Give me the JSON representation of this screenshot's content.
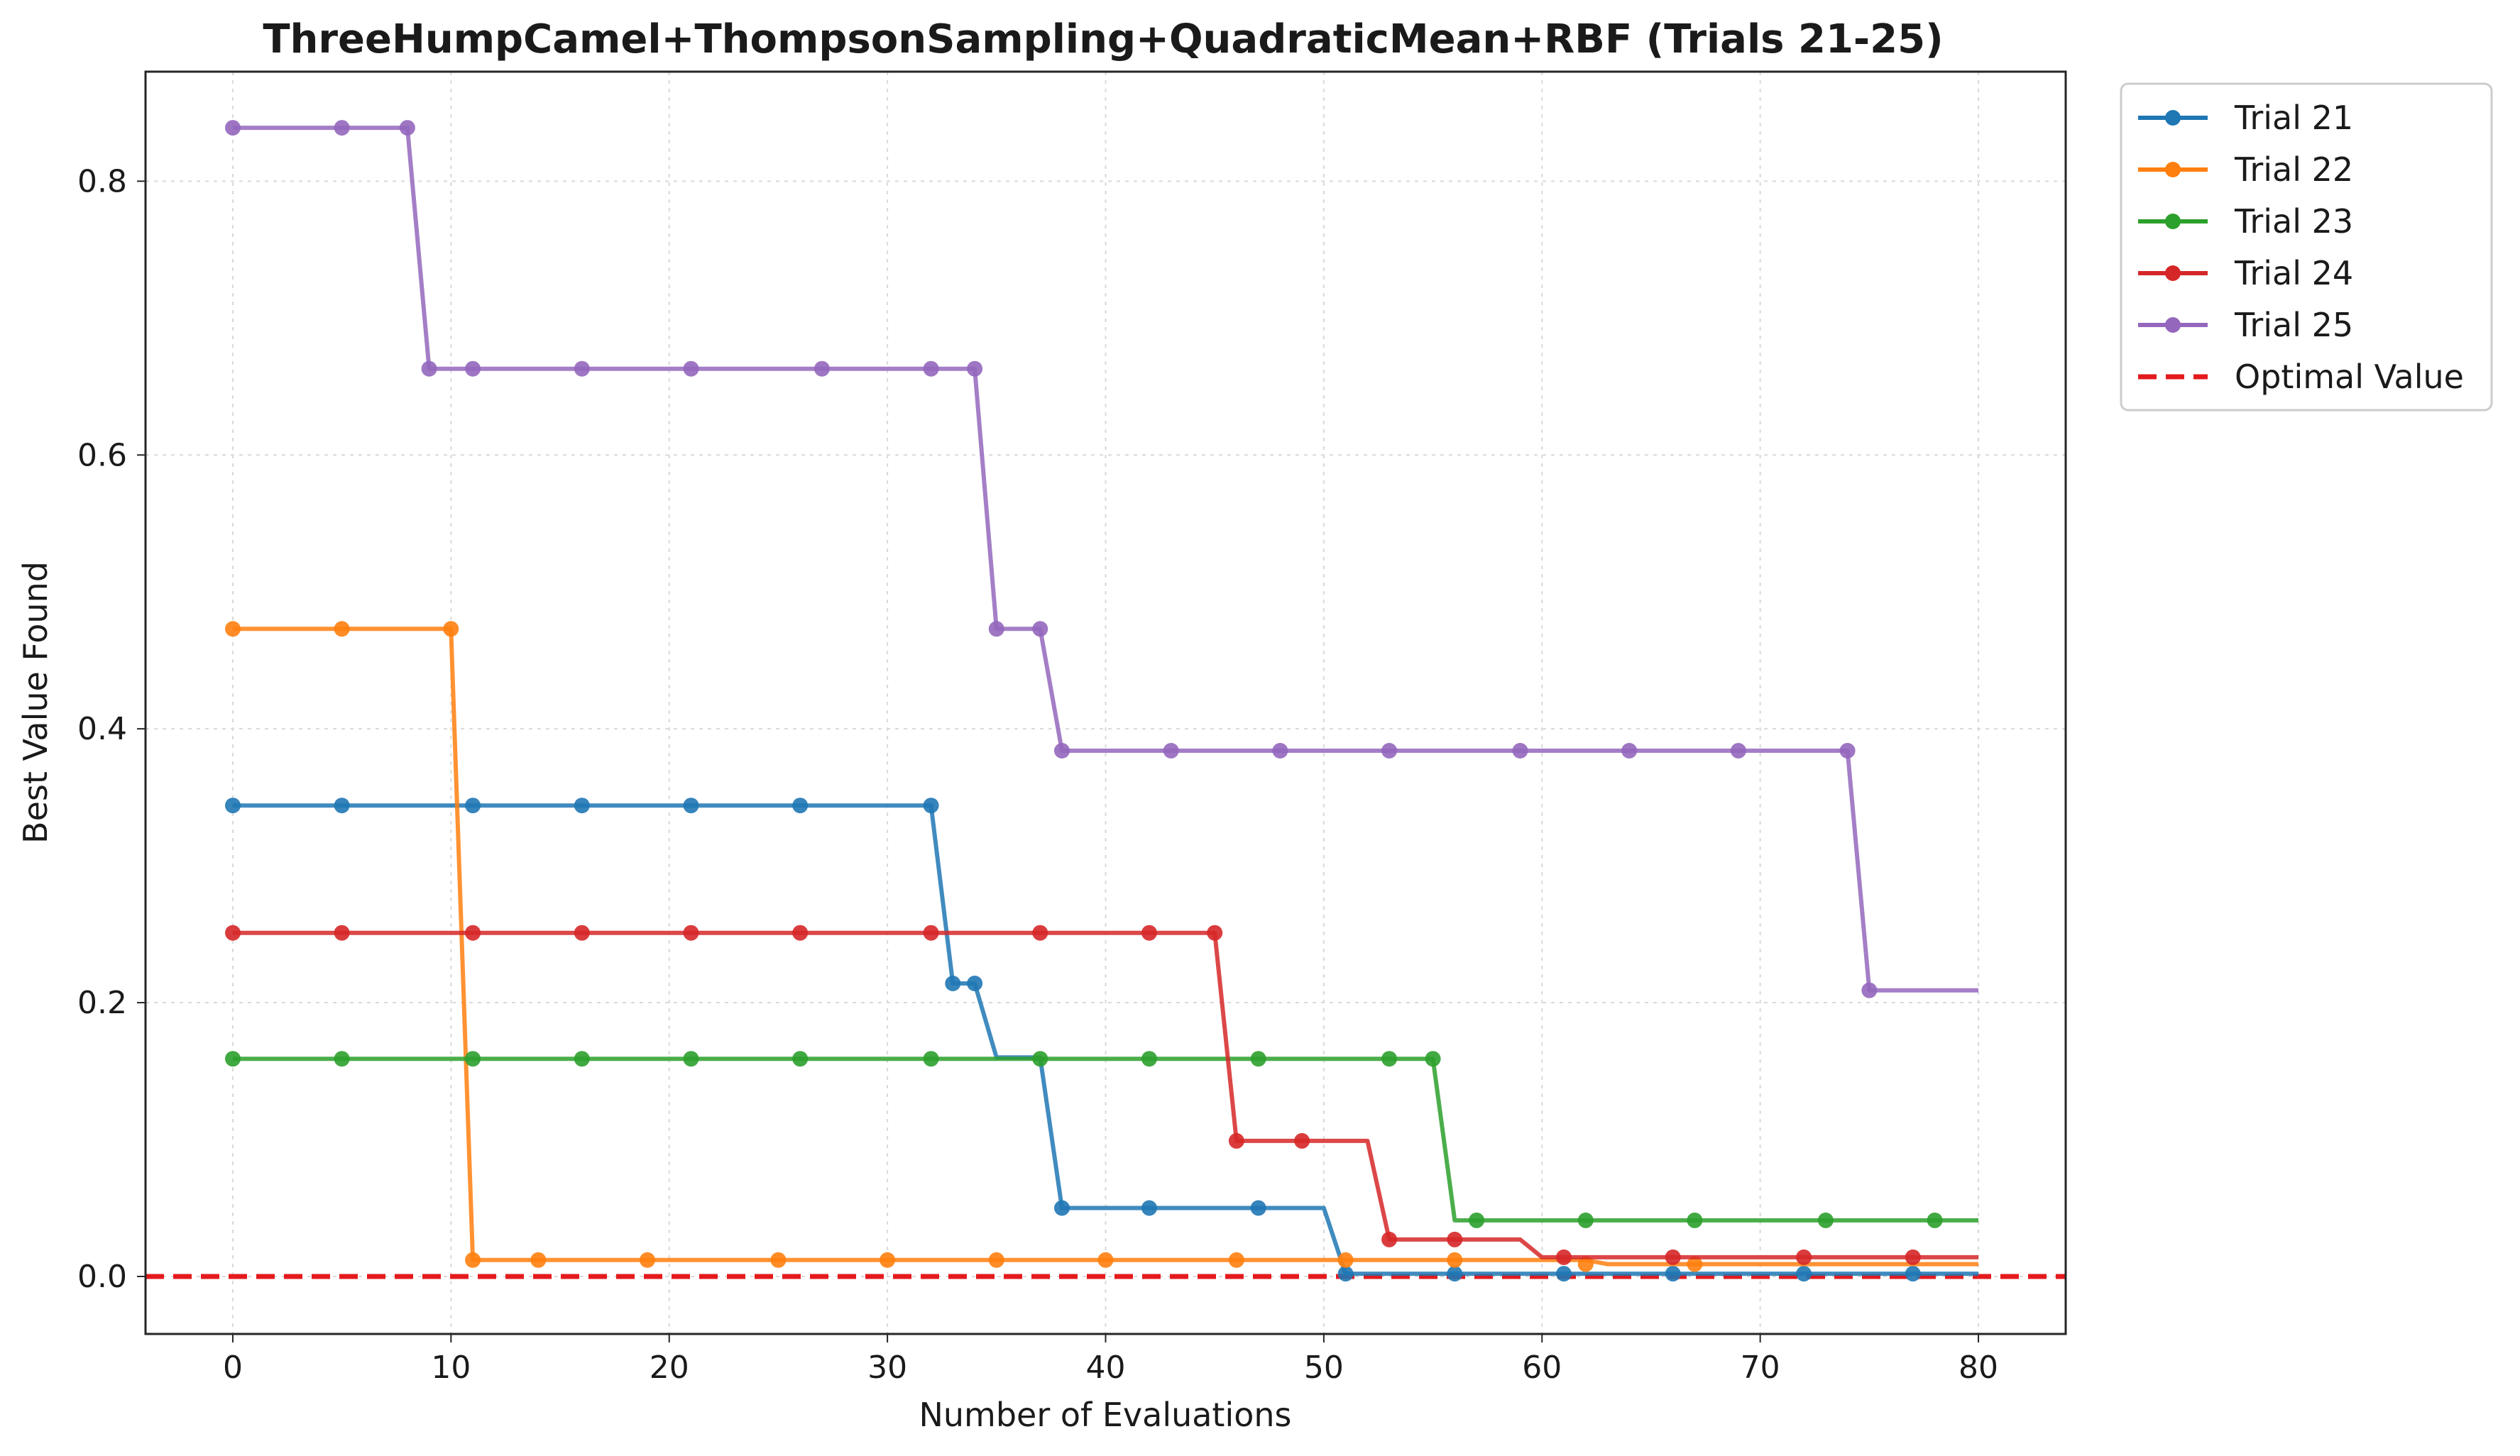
{
  "chart_data": {
    "type": "line",
    "title": "ThreeHumpCamel+ThompsonSampling+QuadraticMean+RBF (Trials 21-25)",
    "xlabel": "Number of Evaluations",
    "ylabel": "Best Value Found",
    "xlim": [
      -4,
      84
    ],
    "ylim": [
      -0.042,
      0.88
    ],
    "xticks": [
      0,
      10,
      20,
      30,
      40,
      50,
      60,
      70,
      80
    ],
    "yticks": [
      0.0,
      0.2,
      0.4,
      0.6,
      0.8
    ],
    "xtick_labels": [
      "0",
      "10",
      "20",
      "30",
      "40",
      "50",
      "60",
      "70",
      "80"
    ],
    "ytick_labels": [
      "0.0",
      "0.2",
      "0.4",
      "0.6",
      "0.8"
    ],
    "grid": true,
    "legend_position": "outside-top-right",
    "optimal_value": {
      "name": "Optimal Value",
      "y": 0.0,
      "color": "#e41a1c",
      "style": "dashed"
    },
    "series": [
      {
        "name": "Trial 21",
        "color": "#1f77b4",
        "points": [
          [
            0,
            0.344
          ],
          [
            32,
            0.344
          ],
          [
            33,
            0.214
          ],
          [
            34,
            0.214
          ],
          [
            35,
            0.16
          ],
          [
            37,
            0.16
          ],
          [
            38,
            0.05
          ],
          [
            50,
            0.05
          ],
          [
            51,
            0.002
          ],
          [
            80,
            0.002
          ]
        ],
        "markers": [
          [
            0,
            0.344
          ],
          [
            5,
            0.344
          ],
          [
            11,
            0.344
          ],
          [
            16,
            0.344
          ],
          [
            21,
            0.344
          ],
          [
            26,
            0.344
          ],
          [
            32,
            0.344
          ],
          [
            33,
            0.214
          ],
          [
            34,
            0.214
          ],
          [
            38,
            0.05
          ],
          [
            42,
            0.05
          ],
          [
            47,
            0.05
          ],
          [
            51,
            0.002
          ],
          [
            56,
            0.002
          ],
          [
            61,
            0.002
          ],
          [
            66,
            0.002
          ],
          [
            72,
            0.002
          ],
          [
            77,
            0.002
          ]
        ]
      },
      {
        "name": "Trial 22",
        "color": "#ff7f0e",
        "points": [
          [
            0,
            0.473
          ],
          [
            10,
            0.473
          ],
          [
            11,
            0.012
          ],
          [
            62,
            0.012
          ],
          [
            63,
            0.009
          ],
          [
            80,
            0.009
          ]
        ],
        "markers": [
          [
            0,
            0.473
          ],
          [
            5,
            0.473
          ],
          [
            10,
            0.473
          ],
          [
            11,
            0.012
          ],
          [
            14,
            0.012
          ],
          [
            19,
            0.012
          ],
          [
            25,
            0.012
          ],
          [
            30,
            0.012
          ],
          [
            35,
            0.012
          ],
          [
            40,
            0.012
          ],
          [
            46,
            0.012
          ],
          [
            51,
            0.012
          ],
          [
            56,
            0.012
          ],
          [
            62,
            0.009
          ],
          [
            67,
            0.009
          ]
        ]
      },
      {
        "name": "Trial 23",
        "color": "#2ca02c",
        "points": [
          [
            0,
            0.159
          ],
          [
            55,
            0.159
          ],
          [
            56,
            0.041
          ],
          [
            80,
            0.041
          ]
        ],
        "markers": [
          [
            0,
            0.159
          ],
          [
            5,
            0.159
          ],
          [
            11,
            0.159
          ],
          [
            16,
            0.159
          ],
          [
            21,
            0.159
          ],
          [
            26,
            0.159
          ],
          [
            32,
            0.159
          ],
          [
            37,
            0.159
          ],
          [
            42,
            0.159
          ],
          [
            47,
            0.159
          ],
          [
            53,
            0.159
          ],
          [
            55,
            0.159
          ],
          [
            57,
            0.041
          ],
          [
            62,
            0.041
          ],
          [
            67,
            0.041
          ],
          [
            73,
            0.041
          ],
          [
            78,
            0.041
          ]
        ]
      },
      {
        "name": "Trial 24",
        "color": "#d62728",
        "points": [
          [
            0,
            0.251
          ],
          [
            45,
            0.251
          ],
          [
            46,
            0.099
          ],
          [
            52,
            0.099
          ],
          [
            53,
            0.027
          ],
          [
            59,
            0.027
          ],
          [
            60,
            0.014
          ],
          [
            80,
            0.014
          ]
        ],
        "markers": [
          [
            0,
            0.251
          ],
          [
            5,
            0.251
          ],
          [
            11,
            0.251
          ],
          [
            16,
            0.251
          ],
          [
            21,
            0.251
          ],
          [
            26,
            0.251
          ],
          [
            32,
            0.251
          ],
          [
            37,
            0.251
          ],
          [
            42,
            0.251
          ],
          [
            45,
            0.251
          ],
          [
            46,
            0.099
          ],
          [
            49,
            0.099
          ],
          [
            53,
            0.027
          ],
          [
            56,
            0.027
          ],
          [
            61,
            0.014
          ],
          [
            66,
            0.014
          ],
          [
            72,
            0.014
          ],
          [
            77,
            0.014
          ]
        ]
      },
      {
        "name": "Trial 25",
        "color": "#9467bd",
        "points": [
          [
            0,
            0.839
          ],
          [
            8,
            0.839
          ],
          [
            9,
            0.663
          ],
          [
            34,
            0.663
          ],
          [
            35,
            0.473
          ],
          [
            37,
            0.473
          ],
          [
            38,
            0.384
          ],
          [
            74,
            0.384
          ],
          [
            75,
            0.209
          ],
          [
            80,
            0.209
          ]
        ],
        "markers": [
          [
            0,
            0.839
          ],
          [
            5,
            0.839
          ],
          [
            8,
            0.839
          ],
          [
            9,
            0.663
          ],
          [
            11,
            0.663
          ],
          [
            16,
            0.663
          ],
          [
            21,
            0.663
          ],
          [
            27,
            0.663
          ],
          [
            32,
            0.663
          ],
          [
            34,
            0.663
          ],
          [
            35,
            0.473
          ],
          [
            37,
            0.473
          ],
          [
            38,
            0.384
          ],
          [
            43,
            0.384
          ],
          [
            48,
            0.384
          ],
          [
            53,
            0.384
          ],
          [
            59,
            0.384
          ],
          [
            64,
            0.384
          ],
          [
            69,
            0.384
          ],
          [
            74,
            0.384
          ],
          [
            75,
            0.209
          ]
        ]
      }
    ]
  }
}
